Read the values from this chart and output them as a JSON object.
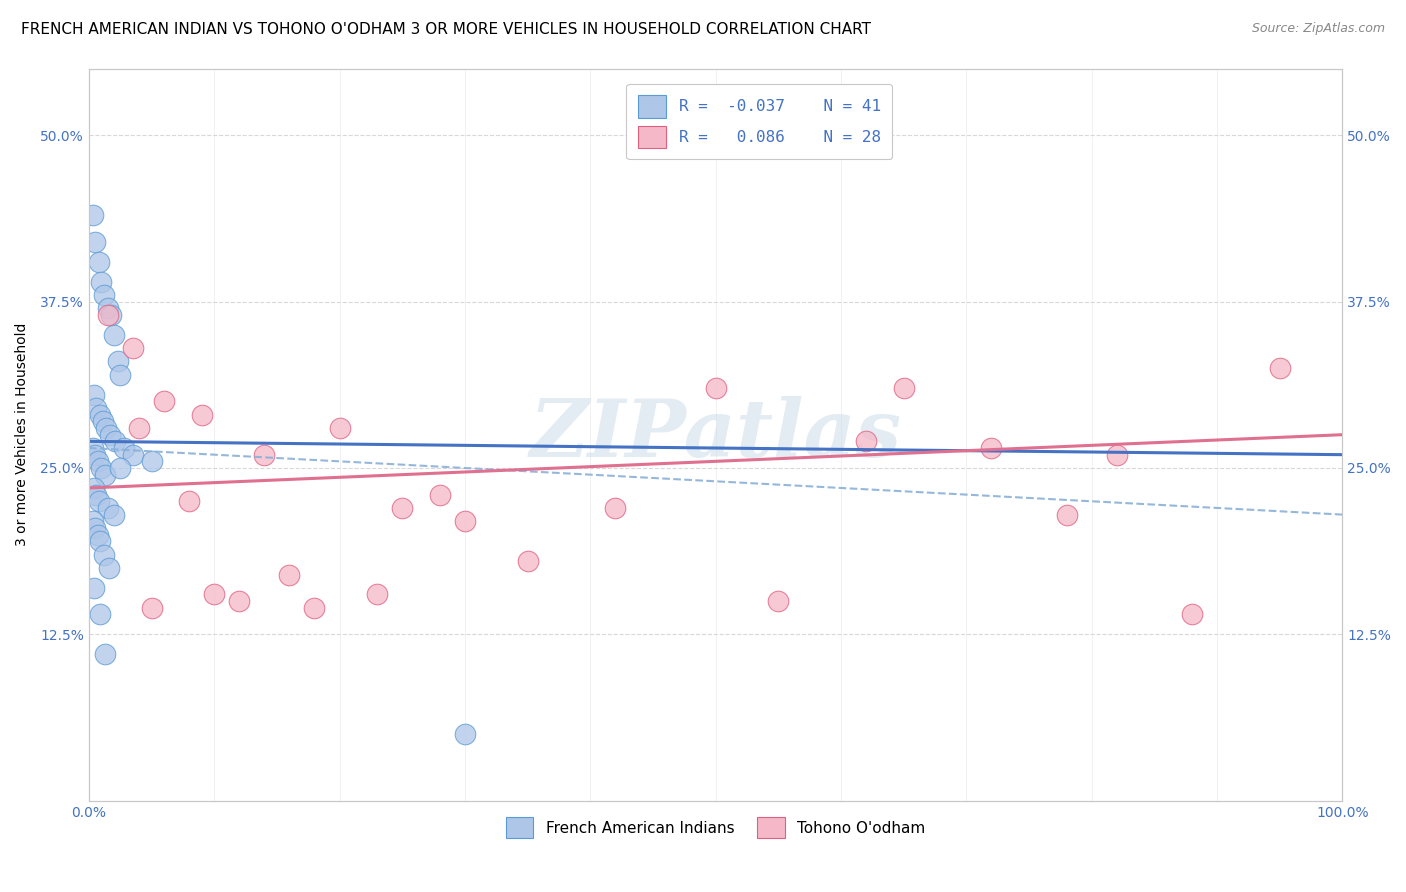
{
  "title": "FRENCH AMERICAN INDIAN VS TOHONO O'ODHAM 3 OR MORE VEHICLES IN HOUSEHOLD CORRELATION CHART",
  "source": "Source: ZipAtlas.com",
  "ylabel": "3 or more Vehicles in Household",
  "blue_label": "French American Indians",
  "pink_label": "Tohono O'odham",
  "blue_R": -0.037,
  "blue_N": 41,
  "pink_R": 0.086,
  "pink_N": 28,
  "blue_color": "#aec6e8",
  "pink_color": "#f4b8c8",
  "blue_edge": "#5b9bd5",
  "pink_edge": "#e06080",
  "blue_scatter_x": [
    0.3,
    0.5,
    0.8,
    1.0,
    1.2,
    1.5,
    1.8,
    2.0,
    2.3,
    2.5,
    0.4,
    0.6,
    0.9,
    1.1,
    1.4,
    1.7,
    2.1,
    2.8,
    3.5,
    5.0,
    0.3,
    0.5,
    0.7,
    1.0,
    1.3,
    0.4,
    0.6,
    0.8,
    1.5,
    2.0,
    0.3,
    0.5,
    0.7,
    0.9,
    1.2,
    1.6,
    0.4,
    0.9,
    1.3,
    2.5,
    30.0
  ],
  "blue_scatter_y": [
    44.0,
    42.0,
    40.5,
    39.0,
    38.0,
    37.0,
    36.5,
    35.0,
    33.0,
    32.0,
    30.5,
    29.5,
    29.0,
    28.5,
    28.0,
    27.5,
    27.0,
    26.5,
    26.0,
    25.5,
    26.5,
    26.0,
    25.5,
    25.0,
    24.5,
    23.5,
    23.0,
    22.5,
    22.0,
    21.5,
    21.0,
    20.5,
    20.0,
    19.5,
    18.5,
    17.5,
    16.0,
    14.0,
    11.0,
    25.0,
    5.0
  ],
  "pink_scatter_x": [
    1.5,
    3.5,
    6.0,
    9.0,
    14.0,
    20.0,
    25.0,
    35.0,
    50.0,
    62.0,
    72.0,
    78.0,
    88.0,
    95.0,
    4.0,
    8.0,
    12.0,
    18.0,
    23.0,
    30.0,
    42.0,
    55.0,
    65.0,
    82.0,
    5.0,
    10.0,
    16.0,
    28.0
  ],
  "pink_scatter_y": [
    36.5,
    34.0,
    30.0,
    29.0,
    26.0,
    28.0,
    22.0,
    18.0,
    31.0,
    27.0,
    26.5,
    21.5,
    14.0,
    32.5,
    28.0,
    22.5,
    15.0,
    14.5,
    15.5,
    21.0,
    22.0,
    15.0,
    31.0,
    26.0,
    14.5,
    15.5,
    17.0,
    23.0
  ],
  "blue_line_x0": 0,
  "blue_line_x1": 100,
  "blue_line_y0": 27.0,
  "blue_line_y1": 26.0,
  "pink_line_x0": 0,
  "pink_line_x1": 100,
  "pink_line_y0": 23.5,
  "pink_line_y1": 27.5,
  "dash_line_x0": 0,
  "dash_line_x1": 100,
  "dash_line_y0": 26.5,
  "dash_line_y1": 21.5,
  "xlim": [
    0,
    100
  ],
  "ylim": [
    0,
    55
  ],
  "yticks": [
    12.5,
    25.0,
    37.5,
    50.0
  ],
  "xticks": [
    0,
    100
  ],
  "xticklabels": [
    "0.0%",
    "100.0%"
  ],
  "yticklabels": [
    "12.5%",
    "25.0%",
    "37.5%",
    "50.0%"
  ],
  "background_color": "#ffffff",
  "grid_color": "#d8d8d8",
  "tick_color": "#4472c4",
  "blue_line_color": "#4472c4",
  "pink_line_color": "#e07090",
  "dash_line_color": "#8ab0d8",
  "title_fontsize": 11,
  "watermark": "ZIPatlas"
}
